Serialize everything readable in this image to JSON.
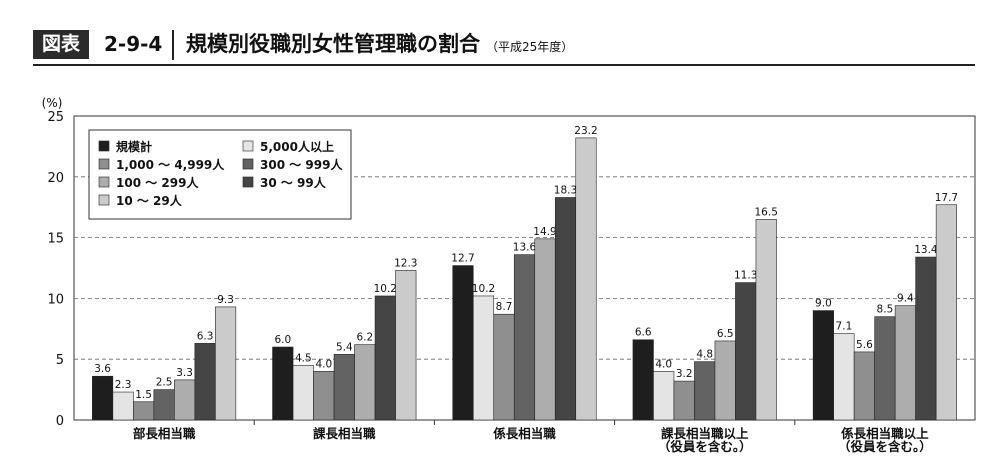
{
  "header": {
    "badge": "図表",
    "figure_number": "2-9-4",
    "title": "規模別役職別女性管理職の割合",
    "subtitle": "（平成25年度）"
  },
  "chart_data": {
    "type": "bar",
    "y_unit_label": "(%)",
    "ylim": [
      0,
      25
    ],
    "yticks": [
      0,
      5,
      10,
      15,
      20,
      25
    ],
    "grid": "dashed horizontal",
    "legend_position": "top-left",
    "categories": [
      [
        "部長相当職"
      ],
      [
        "課長相当職"
      ],
      [
        "係長相当職"
      ],
      [
        "課長相当職以上",
        "（役員を含む。）"
      ],
      [
        "係長相当職以上",
        "（役員を含む。）"
      ]
    ],
    "series": [
      {
        "name": "規模計",
        "color": "#1e1e1e",
        "values": [
          3.6,
          6.0,
          12.7,
          6.6,
          9.0
        ]
      },
      {
        "name": "5,000人以上",
        "color": "#e4e4e4",
        "values": [
          2.3,
          4.5,
          10.2,
          4.0,
          7.1
        ]
      },
      {
        "name": "1,000 ～ 4,999人",
        "color": "#8f8f8f",
        "values": [
          1.5,
          4.0,
          8.7,
          3.2,
          5.6
        ]
      },
      {
        "name": "300 ～ 999人",
        "color": "#636363",
        "values": [
          2.5,
          5.4,
          13.6,
          4.8,
          8.5
        ]
      },
      {
        "name": "100 ～ 299人",
        "color": "#adadad",
        "values": [
          3.3,
          6.2,
          14.9,
          6.5,
          9.4
        ]
      },
      {
        "name": "30 ～ 99人",
        "color": "#454545",
        "values": [
          6.3,
          10.2,
          18.3,
          11.3,
          13.4
        ]
      },
      {
        "name": "10 ～ 29人",
        "color": "#cbcbcb",
        "values": [
          9.3,
          12.3,
          23.2,
          16.5,
          17.7
        ]
      }
    ],
    "legend_order": [
      0,
      1,
      2,
      3,
      4,
      5,
      6
    ]
  }
}
